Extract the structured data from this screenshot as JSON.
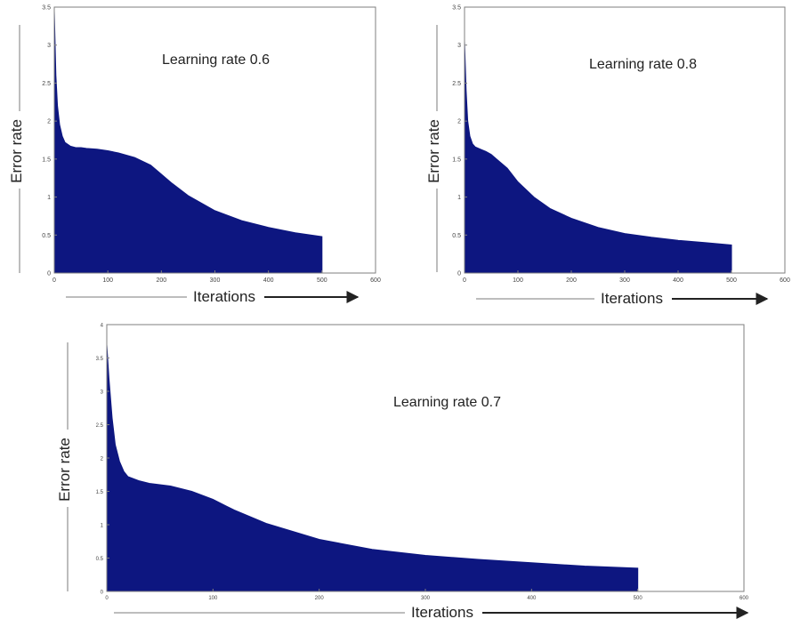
{
  "colors": {
    "fill": "#0d1680",
    "axis": "#7f7f7f",
    "arrow": "#222222",
    "arrow_faint": "#bdbdbd"
  },
  "chart_data": [
    {
      "type": "area",
      "annotation": "Learning rate 0.6",
      "xlabel": "Iterations",
      "ylabel": "Error rate",
      "xlim": [
        0,
        600
      ],
      "ylim": [
        0,
        3.5
      ],
      "x_ticks": [
        "0",
        "100",
        "200",
        "300",
        "400",
        "500",
        "600"
      ],
      "y_ticks": [
        "0",
        "0.5",
        "1",
        "1.5",
        "2",
        "2.5",
        "3",
        "3.5"
      ],
      "series": [
        {
          "x": [
            0,
            3,
            6,
            10,
            15,
            20,
            30,
            40,
            50,
            60,
            80,
            100,
            120,
            150,
            180,
            200,
            220,
            250,
            300,
            350,
            400,
            450,
            500
          ],
          "y": [
            3.45,
            2.6,
            2.2,
            1.95,
            1.8,
            1.72,
            1.67,
            1.65,
            1.65,
            1.64,
            1.63,
            1.61,
            1.58,
            1.52,
            1.42,
            1.3,
            1.18,
            1.02,
            0.82,
            0.69,
            0.6,
            0.53,
            0.48
          ]
        }
      ]
    },
    {
      "type": "area",
      "annotation": "Learning rate 0.8",
      "xlabel": "Iterations",
      "ylabel": "Error rate",
      "xlim": [
        0,
        600
      ],
      "ylim": [
        0,
        3.5
      ],
      "x_ticks": [
        "0",
        "100",
        "200",
        "300",
        "400",
        "500",
        "600"
      ],
      "y_ticks": [
        "0",
        "0.5",
        "1",
        "1.5",
        "2",
        "2.5",
        "3",
        "3.5"
      ],
      "series": [
        {
          "x": [
            0,
            3,
            6,
            10,
            15,
            20,
            30,
            40,
            50,
            60,
            80,
            100,
            130,
            160,
            200,
            250,
            300,
            350,
            400,
            450,
            500
          ],
          "y": [
            3.05,
            2.4,
            2.0,
            1.8,
            1.7,
            1.66,
            1.63,
            1.6,
            1.56,
            1.5,
            1.38,
            1.2,
            1.0,
            0.85,
            0.72,
            0.6,
            0.52,
            0.47,
            0.43,
            0.4,
            0.37
          ]
        }
      ]
    },
    {
      "type": "area",
      "annotation": "Learning rate 0.7",
      "xlabel": "Iterations",
      "ylabel": "Error rate",
      "xlim": [
        0,
        600
      ],
      "ylim": [
        0,
        4
      ],
      "x_ticks": [
        "0",
        "100",
        "200",
        "300",
        "400",
        "500",
        "600"
      ],
      "y_ticks": [
        "0",
        "0.5",
        "1",
        "1.5",
        "2",
        "2.5",
        "3",
        "3.5",
        "4"
      ],
      "series": [
        {
          "x": [
            0,
            2,
            5,
            8,
            12,
            16,
            20,
            30,
            40,
            60,
            80,
            100,
            120,
            150,
            200,
            250,
            300,
            350,
            400,
            450,
            500
          ],
          "y": [
            3.7,
            3.2,
            2.6,
            2.2,
            1.95,
            1.8,
            1.72,
            1.66,
            1.62,
            1.58,
            1.5,
            1.38,
            1.22,
            1.02,
            0.78,
            0.63,
            0.54,
            0.48,
            0.43,
            0.38,
            0.35
          ]
        }
      ]
    }
  ]
}
